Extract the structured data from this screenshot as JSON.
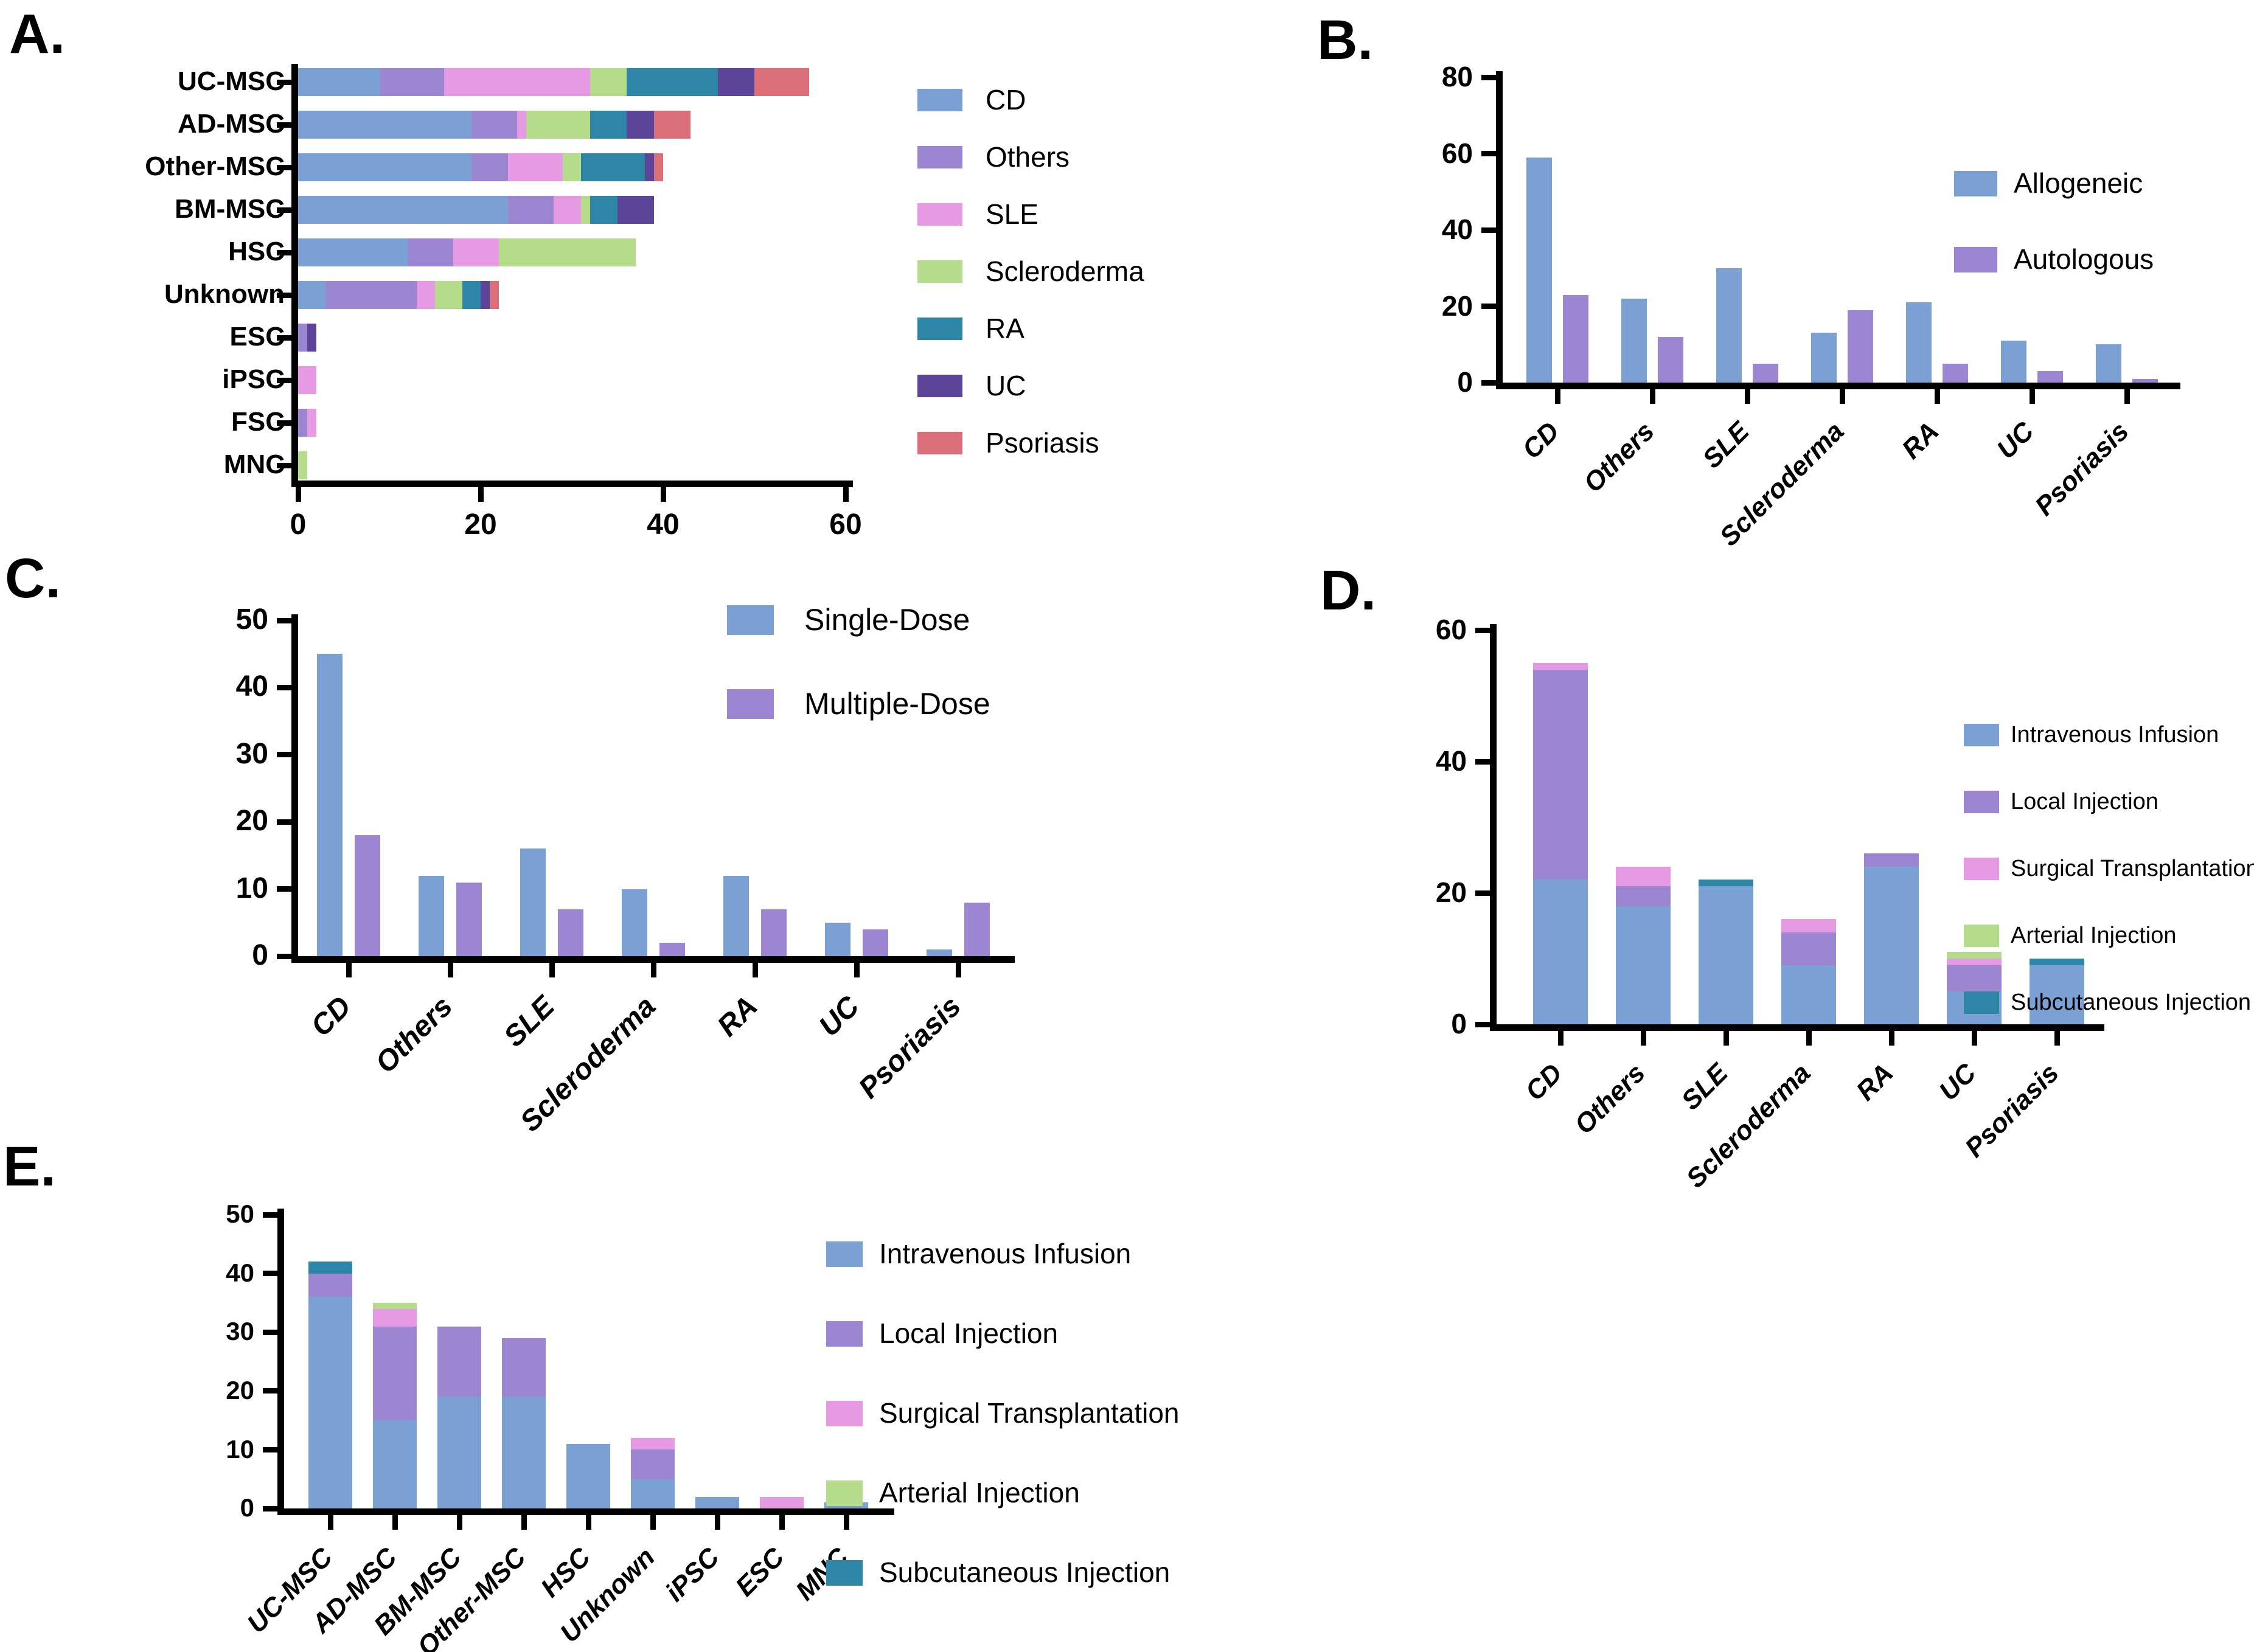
{
  "figure_title": "",
  "colors": {
    "blue": "#7aa0d4",
    "purple": "#9c86d2",
    "pink": "#e79ae4",
    "green": "#b4dc8a",
    "teal": "#2e86a6",
    "darkpurple": "#5c4599",
    "red": "#da6f79",
    "axis": "#000000",
    "background": "#ffffff"
  },
  "chart_data": [
    {
      "id": "A",
      "panel_label": "A.",
      "type": "bar",
      "orientation": "horizontal",
      "stacked": true,
      "grid": false,
      "legend_position": "right",
      "categories": [
        "UC-MSC",
        "AD-MSC",
        "Other-MSC",
        "BM-MSC",
        "HSC",
        "Unknown",
        "ESC",
        "iPSC",
        "FSC",
        "MNC"
      ],
      "series": [
        {
          "name": "CD",
          "color": "blue",
          "values": [
            9,
            19,
            19,
            23,
            12,
            3,
            0,
            0,
            0,
            0
          ]
        },
        {
          "name": "Others",
          "color": "purple",
          "values": [
            7,
            5,
            4,
            5,
            5,
            10,
            1,
            0,
            1,
            0
          ]
        },
        {
          "name": "SLE",
          "color": "pink",
          "values": [
            16,
            1,
            6,
            3,
            5,
            2,
            0,
            2,
            1,
            0
          ]
        },
        {
          "name": "Scleroderma",
          "color": "green",
          "values": [
            4,
            7,
            2,
            1,
            15,
            3,
            0,
            0,
            0,
            1
          ]
        },
        {
          "name": "RA",
          "color": "teal",
          "values": [
            10,
            4,
            7,
            3,
            0,
            2,
            0,
            0,
            0,
            0
          ]
        },
        {
          "name": "UC",
          "color": "darkpurple",
          "values": [
            4,
            3,
            1,
            4,
            0,
            1,
            1,
            0,
            0,
            0
          ]
        },
        {
          "name": "Psoriasis",
          "color": "red",
          "values": [
            6,
            4,
            1,
            0,
            0,
            1,
            0,
            0,
            0,
            0
          ]
        }
      ],
      "value_axis": {
        "min": 0,
        "max": 60,
        "ticks": [
          0,
          20,
          40,
          60
        ]
      }
    },
    {
      "id": "B",
      "panel_label": "B.",
      "type": "bar",
      "orientation": "vertical",
      "stacked": false,
      "grid": false,
      "legend_position": "top-right",
      "categories": [
        "CD",
        "Others",
        "SLE",
        "Scleroderma",
        "RA",
        "UC",
        "Psoriasis"
      ],
      "series": [
        {
          "name": "Allogeneic",
          "color": "blue",
          "values": [
            59,
            22,
            30,
            13,
            21,
            11,
            10
          ]
        },
        {
          "name": "Autologous",
          "color": "purple",
          "values": [
            23,
            12,
            5,
            19,
            5,
            3,
            1
          ]
        }
      ],
      "value_axis": {
        "min": 0,
        "max": 80,
        "ticks": [
          0,
          20,
          40,
          60,
          80
        ]
      }
    },
    {
      "id": "C",
      "panel_label": "C.",
      "type": "bar",
      "orientation": "vertical",
      "stacked": false,
      "grid": false,
      "legend_position": "top-right",
      "categories": [
        "CD",
        "Others",
        "SLE",
        "Scleroderma",
        "RA",
        "UC",
        "Psoriasis"
      ],
      "series": [
        {
          "name": "Single-Dose",
          "color": "blue",
          "values": [
            45,
            12,
            16,
            10,
            12,
            5,
            1
          ]
        },
        {
          "name": "Multiple-Dose",
          "color": "purple",
          "values": [
            18,
            11,
            7,
            2,
            7,
            4,
            8
          ]
        }
      ],
      "value_axis": {
        "min": 0,
        "max": 50,
        "ticks": [
          0,
          10,
          20,
          30,
          40,
          50
        ]
      }
    },
    {
      "id": "D",
      "panel_label": "D.",
      "type": "bar",
      "orientation": "vertical",
      "stacked": true,
      "grid": false,
      "legend_position": "right",
      "categories": [
        "CD",
        "Others",
        "SLE",
        "Scleroderma",
        "RA",
        "UC",
        "Psoriasis"
      ],
      "series": [
        {
          "name": "Intravenous Infusion",
          "color": "blue",
          "values": [
            22,
            18,
            21,
            9,
            24,
            5,
            9
          ]
        },
        {
          "name": "Local Injection",
          "color": "purple",
          "values": [
            32,
            3,
            0,
            5,
            2,
            4,
            0
          ]
        },
        {
          "name": "Surgical Transplantation",
          "color": "pink",
          "values": [
            1,
            3,
            0,
            2,
            0,
            1,
            0
          ]
        },
        {
          "name": "Arterial Injection",
          "color": "green",
          "values": [
            0,
            0,
            0,
            0,
            0,
            1,
            0
          ]
        },
        {
          "name": "Subcutaneous Injection",
          "color": "teal",
          "values": [
            0,
            0,
            1,
            0,
            0,
            0,
            1
          ]
        }
      ],
      "value_axis": {
        "min": 0,
        "max": 60,
        "ticks": [
          0,
          20,
          40,
          60
        ]
      }
    },
    {
      "id": "E",
      "panel_label": "E.",
      "type": "bar",
      "orientation": "vertical",
      "stacked": true,
      "grid": false,
      "legend_position": "right",
      "categories": [
        "UC-MSC",
        "AD-MSC",
        "BM-MSC",
        "Other-MSC",
        "HSC",
        "Unknown",
        "iPSC",
        "ESC",
        "MNC"
      ],
      "series": [
        {
          "name": "Intravenous Infusion",
          "color": "blue",
          "values": [
            36,
            15,
            19,
            19,
            11,
            5,
            2,
            0,
            1
          ]
        },
        {
          "name": "Local Injection",
          "color": "purple",
          "values": [
            4,
            16,
            12,
            10,
            0,
            5,
            0,
            0,
            0
          ]
        },
        {
          "name": "Surgical Transplantation",
          "color": "pink",
          "values": [
            0,
            3,
            0,
            0,
            0,
            2,
            0,
            2,
            0
          ]
        },
        {
          "name": "Arterial Injection",
          "color": "green",
          "values": [
            0,
            1,
            0,
            0,
            0,
            0,
            0,
            0,
            0
          ]
        },
        {
          "name": "Subcutaneous Injection",
          "color": "teal",
          "values": [
            2,
            0,
            0,
            0,
            0,
            0,
            0,
            0,
            0
          ]
        }
      ],
      "value_axis": {
        "min": 0,
        "max": 50,
        "ticks": [
          0,
          10,
          20,
          30,
          40,
          50
        ]
      }
    }
  ]
}
